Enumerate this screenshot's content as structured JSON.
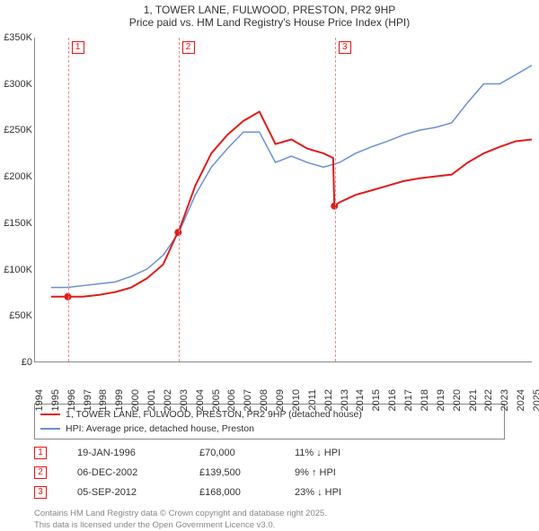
{
  "title_line1": "1, TOWER LANE, FULWOOD, PRESTON, PR2 9HP",
  "title_line2": "Price paid vs. HM Land Registry's House Price Index (HPI)",
  "chart": {
    "type": "line",
    "background_color": "#ffffff",
    "grid_color": "#e0e0e0",
    "axis_color": "#888888",
    "x_years": [
      1994,
      1995,
      1996,
      1997,
      1998,
      1999,
      2000,
      2001,
      2002,
      2003,
      2004,
      2005,
      2006,
      2007,
      2008,
      2009,
      2010,
      2011,
      2012,
      2013,
      2014,
      2015,
      2016,
      2017,
      2018,
      2019,
      2020,
      2021,
      2022,
      2023,
      2024,
      2025
    ],
    "ylim": [
      0,
      350000
    ],
    "ytick_step": 50000,
    "yticks": [
      "£0",
      "£50K",
      "£100K",
      "£150K",
      "£200K",
      "£250K",
      "£300K",
      "£350K"
    ],
    "series": {
      "price_paid": {
        "label": "1, TOWER LANE, FULWOOD, PRESTON, PR2 9HP (detached house)",
        "color": "#e11b1b",
        "width": 2,
        "points": [
          [
            1995.0,
            70000
          ],
          [
            1996.0,
            70000
          ],
          [
            1997.0,
            70000
          ],
          [
            1998.0,
            72000
          ],
          [
            1999.0,
            75000
          ],
          [
            2000.0,
            80000
          ],
          [
            2001.0,
            90000
          ],
          [
            2002.0,
            105000
          ],
          [
            2002.9,
            139500
          ],
          [
            2003.0,
            142000
          ],
          [
            2004.0,
            190000
          ],
          [
            2005.0,
            225000
          ],
          [
            2006.0,
            245000
          ],
          [
            2007.0,
            260000
          ],
          [
            2008.0,
            270000
          ],
          [
            2009.0,
            235000
          ],
          [
            2010.0,
            240000
          ],
          [
            2011.0,
            230000
          ],
          [
            2012.0,
            225000
          ],
          [
            2012.6,
            220000
          ],
          [
            2012.68,
            168000
          ],
          [
            2013.0,
            172000
          ],
          [
            2014.0,
            180000
          ],
          [
            2015.0,
            185000
          ],
          [
            2016.0,
            190000
          ],
          [
            2017.0,
            195000
          ],
          [
            2018.0,
            198000
          ],
          [
            2019.0,
            200000
          ],
          [
            2020.0,
            202000
          ],
          [
            2021.0,
            215000
          ],
          [
            2022.0,
            225000
          ],
          [
            2023.0,
            232000
          ],
          [
            2024.0,
            238000
          ],
          [
            2025.0,
            240000
          ]
        ],
        "sale_dots": [
          {
            "x": 1996.05,
            "y": 70000
          },
          {
            "x": 2002.93,
            "y": 139500
          },
          {
            "x": 2012.68,
            "y": 168000
          }
        ]
      },
      "hpi": {
        "label": "HPI: Average price, detached house, Preston",
        "color": "#6a8fd8",
        "width": 1.5,
        "points": [
          [
            1995.0,
            80000
          ],
          [
            1996.0,
            80000
          ],
          [
            1997.0,
            82000
          ],
          [
            1998.0,
            84000
          ],
          [
            1999.0,
            86000
          ],
          [
            2000.0,
            92000
          ],
          [
            2001.0,
            100000
          ],
          [
            2002.0,
            115000
          ],
          [
            2003.0,
            140000
          ],
          [
            2004.0,
            180000
          ],
          [
            2005.0,
            210000
          ],
          [
            2006.0,
            230000
          ],
          [
            2007.0,
            248000
          ],
          [
            2008.0,
            248000
          ],
          [
            2009.0,
            215000
          ],
          [
            2010.0,
            222000
          ],
          [
            2011.0,
            215000
          ],
          [
            2012.0,
            210000
          ],
          [
            2013.0,
            215000
          ],
          [
            2014.0,
            225000
          ],
          [
            2015.0,
            232000
          ],
          [
            2016.0,
            238000
          ],
          [
            2017.0,
            245000
          ],
          [
            2018.0,
            250000
          ],
          [
            2019.0,
            253000
          ],
          [
            2020.0,
            258000
          ],
          [
            2021.0,
            280000
          ],
          [
            2022.0,
            300000
          ],
          [
            2023.0,
            300000
          ],
          [
            2024.0,
            310000
          ],
          [
            2025.0,
            320000
          ]
        ]
      }
    },
    "marker_fontsize": 10,
    "label_fontsize": 11
  },
  "legend": {
    "series1_label": "1, TOWER LANE, FULWOOD, PRESTON, PR2 9HP (detached house)",
    "series2_label": "HPI: Average price, detached house, Preston"
  },
  "sales": [
    {
      "idx": "1",
      "date": "19-JAN-1996",
      "price": "£70,000",
      "diff": "11% ↓ HPI"
    },
    {
      "idx": "2",
      "date": "06-DEC-2002",
      "price": "£139,500",
      "diff": "9% ↑ HPI"
    },
    {
      "idx": "3",
      "date": "05-SEP-2012",
      "price": "£168,000",
      "diff": "23% ↓ HPI"
    }
  ],
  "footer_line1": "Contains HM Land Registry data © Crown copyright and database right 2025.",
  "footer_line2": "This data is licensed under the Open Government Licence v3.0."
}
